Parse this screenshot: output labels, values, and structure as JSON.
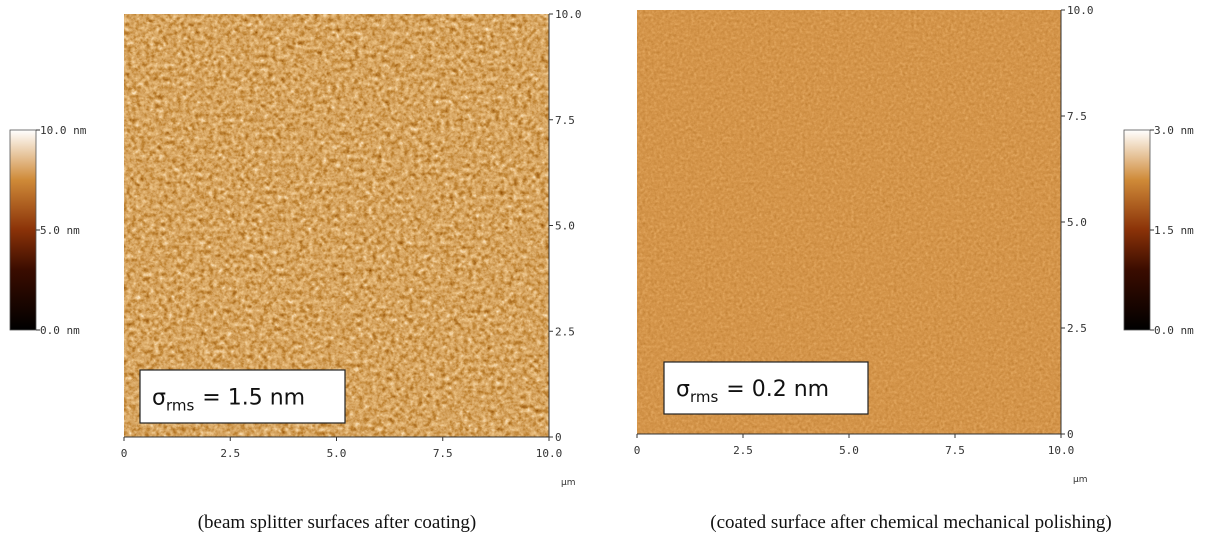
{
  "panels": [
    {
      "colorbar": {
        "labels": [
          "10.0 nm",
          "5.0 nm",
          "0.0 nm"
        ]
      },
      "x_ticks": [
        "0",
        "2.5",
        "5.0",
        "7.5",
        "10.0"
      ],
      "y_ticks": [
        "10.0",
        "7.5",
        "5.0",
        "2.5",
        "0"
      ],
      "unit": "µm",
      "annotation": {
        "symbol": "σ",
        "subscript": "rms",
        "text": "= 1.5 nm"
      },
      "caption": "(beam splitter surfaces after coating)"
    },
    {
      "colorbar": {
        "labels": [
          "3.0 nm",
          "1.5 nm",
          "0.0 nm"
        ]
      },
      "x_ticks": [
        "0",
        "2.5",
        "5.0",
        "7.5",
        "10.0"
      ],
      "y_ticks": [
        "10.0",
        "7.5",
        "5.0",
        "2.5",
        "0"
      ],
      "unit": "µm",
      "annotation": {
        "symbol": "σ",
        "subscript": "rms",
        "text": "= 0.2 nm"
      },
      "caption": "(coated surface after chemical mechanical polishing)"
    }
  ]
}
